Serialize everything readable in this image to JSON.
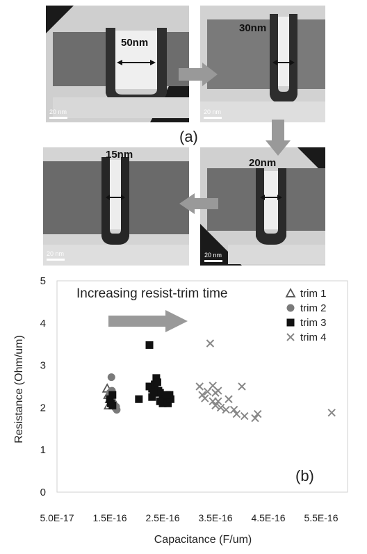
{
  "figure": {
    "panel_a_label": "(a)",
    "tem_images": [
      {
        "width_label": "50nm",
        "scale_label": "20 nm"
      },
      {
        "width_label": "30nm",
        "scale_label": "20 nm"
      },
      {
        "width_label": "20nm",
        "scale_label": "20 nm"
      },
      {
        "width_label": "15nm",
        "scale_label": "20 nm"
      }
    ]
  },
  "chart_data": {
    "type": "scatter",
    "title": "",
    "annotation": "Increasing resist-trim time",
    "panel_label": "(b)",
    "xlabel": "Capacitance (F/um)",
    "ylabel": "Resistance (Ohm/um)",
    "xlim": [
      5e-17,
      6e-16
    ],
    "ylim": [
      0,
      5
    ],
    "x_ticks": [
      "5.0E-17",
      "1.5E-16",
      "2.5E-16",
      "3.5E-16",
      "4.5E-16",
      "5.5E-16"
    ],
    "x_tick_values": [
      5e-17,
      1.5e-16,
      2.5e-16,
      3.5e-16,
      4.5e-16,
      5.5e-16
    ],
    "y_ticks": [
      "0",
      "1",
      "2",
      "3",
      "4",
      "5"
    ],
    "y_tick_values": [
      0,
      1,
      2,
      3,
      4,
      5
    ],
    "grid": false,
    "legend_position": "top-right",
    "series": [
      {
        "name": "trim 1",
        "marker": "triangle",
        "color": "#555555",
        "points": [
          [
            1.45e-16,
            2.45
          ],
          [
            1.47e-16,
            2.3
          ],
          [
            1.5e-16,
            2.2
          ],
          [
            1.48e-16,
            2.05
          ]
        ]
      },
      {
        "name": "trim 2",
        "marker": "circle",
        "color": "#7a7a7a",
        "points": [
          [
            1.53e-16,
            2.72
          ],
          [
            1.5e-16,
            2.35
          ],
          [
            1.52e-16,
            2.25
          ],
          [
            1.55e-16,
            2.15
          ],
          [
            1.57e-16,
            2.1
          ],
          [
            1.6e-16,
            2.0
          ],
          [
            1.63e-16,
            1.95
          ],
          [
            1.58e-16,
            2.05
          ],
          [
            1.54e-16,
            2.4
          ],
          [
            1.62e-16,
            2.02
          ]
        ]
      },
      {
        "name": "trim 3",
        "marker": "square",
        "color": "#111111",
        "points": [
          [
            1.5e-16,
            2.2
          ],
          [
            1.52e-16,
            2.1
          ],
          [
            1.55e-16,
            2.3
          ],
          [
            1.55e-16,
            2.05
          ],
          [
            2.25e-16,
            3.48
          ],
          [
            2.05e-16,
            2.2
          ],
          [
            2.25e-16,
            2.5
          ],
          [
            2.3e-16,
            2.45
          ],
          [
            2.35e-16,
            2.55
          ],
          [
            2.38e-16,
            2.7
          ],
          [
            2.4e-16,
            2.6
          ],
          [
            2.42e-16,
            2.4
          ],
          [
            2.45e-16,
            2.35
          ],
          [
            2.5e-16,
            2.25
          ],
          [
            2.55e-16,
            2.2
          ],
          [
            2.6e-16,
            2.1
          ],
          [
            2.63e-16,
            2.3
          ],
          [
            2.5e-16,
            2.1
          ],
          [
            2.45e-16,
            2.15
          ],
          [
            2.33e-16,
            2.35
          ],
          [
            2.65e-16,
            2.2
          ],
          [
            2.58e-16,
            2.3
          ],
          [
            2.3e-16,
            2.25
          ]
        ]
      },
      {
        "name": "trim 4",
        "marker": "x",
        "color": "#888888",
        "points": [
          [
            3.4e-16,
            3.52
          ],
          [
            3.2e-16,
            2.5
          ],
          [
            3.25e-16,
            2.3
          ],
          [
            3.35e-16,
            2.38
          ],
          [
            3.45e-16,
            2.52
          ],
          [
            3.5e-16,
            2.35
          ],
          [
            3.55e-16,
            2.4
          ],
          [
            3.45e-16,
            2.15
          ],
          [
            3.5e-16,
            2.05
          ],
          [
            3.55e-16,
            2.15
          ],
          [
            3.6e-16,
            2.0
          ],
          [
            3.7e-16,
            1.95
          ],
          [
            3.75e-16,
            2.2
          ],
          [
            3.85e-16,
            1.95
          ],
          [
            3.9e-16,
            1.85
          ],
          [
            4e-16,
            2.5
          ],
          [
            4.05e-16,
            1.8
          ],
          [
            4.25e-16,
            1.75
          ],
          [
            4.3e-16,
            1.85
          ],
          [
            5.7e-16,
            1.88
          ],
          [
            3.3e-16,
            2.22
          ]
        ]
      }
    ]
  }
}
